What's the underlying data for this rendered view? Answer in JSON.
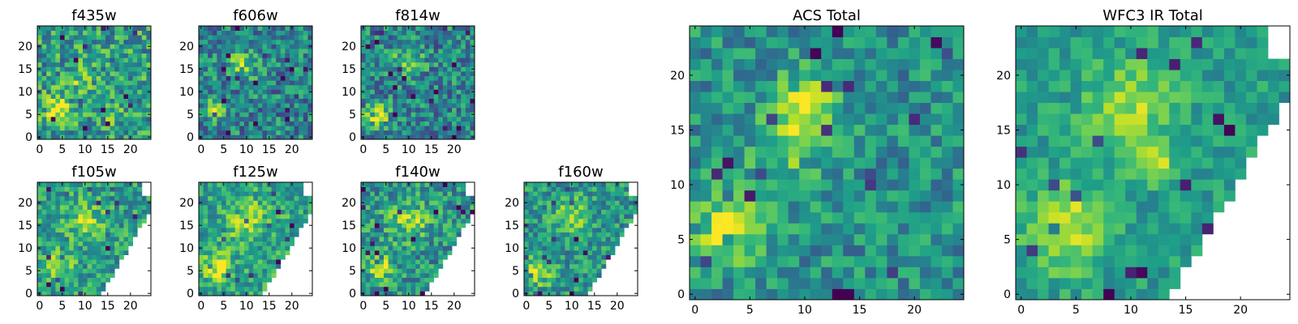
{
  "chart_data": [
    {
      "type": "heatmap",
      "title": "f435w",
      "xlim": [
        -0.5,
        24.5
      ],
      "ylim": [
        -0.5,
        24.5
      ],
      "xticks": [
        0,
        5,
        10,
        15,
        20
      ],
      "yticks": [
        0,
        5,
        10,
        15,
        20
      ],
      "grid": false,
      "colormap": "viridis",
      "blobs": [
        {
          "x": 4,
          "y": 6,
          "amp": 0.35,
          "r": 2
        },
        {
          "x": 9,
          "y": 13,
          "amp": 0.2,
          "r": 2
        },
        {
          "x": 17,
          "y": 6,
          "amp": 0.15,
          "r": 2
        }
      ],
      "mask": "none",
      "noise": 0.28,
      "base": 0.55,
      "seed": 11
    },
    {
      "type": "heatmap",
      "title": "f606w",
      "xlim": [
        -0.5,
        24.5
      ],
      "ylim": [
        -0.5,
        24.5
      ],
      "xticks": [
        0,
        5,
        10,
        15,
        20
      ],
      "yticks": [
        0,
        5,
        10,
        15,
        20
      ],
      "grid": false,
      "colormap": "viridis",
      "blobs": [
        {
          "x": 3,
          "y": 6,
          "amp": 0.45,
          "r": 1.6
        },
        {
          "x": 9,
          "y": 16,
          "amp": 0.35,
          "r": 2.2
        }
      ],
      "mask": "none",
      "noise": 0.26,
      "base": 0.45,
      "seed": 23
    },
    {
      "type": "heatmap",
      "title": "f814w",
      "xlim": [
        -0.5,
        24.5
      ],
      "ylim": [
        -0.5,
        24.5
      ],
      "xticks": [
        0,
        5,
        10,
        15,
        20
      ],
      "yticks": [
        0,
        5,
        10,
        15,
        20
      ],
      "grid": false,
      "colormap": "viridis",
      "blobs": [
        {
          "x": 3,
          "y": 5,
          "amp": 0.5,
          "r": 1.8
        },
        {
          "x": 10,
          "y": 17,
          "amp": 0.35,
          "r": 2.2
        }
      ],
      "mask": "none",
      "noise": 0.26,
      "base": 0.45,
      "seed": 37
    },
    {
      "type": "heatmap",
      "title": "f105w",
      "xlim": [
        -0.5,
        24.5
      ],
      "ylim": [
        -0.5,
        24.5
      ],
      "xticks": [
        0,
        5,
        10,
        15,
        20
      ],
      "yticks": [
        0,
        5,
        10,
        15,
        20
      ],
      "grid": false,
      "colormap": "viridis",
      "blobs": [
        {
          "x": 4,
          "y": 6,
          "amp": 0.35,
          "r": 2.2
        },
        {
          "x": 10,
          "y": 16,
          "amp": 0.25,
          "r": 3
        }
      ],
      "mask": "diagonal",
      "noise": 0.22,
      "base": 0.55,
      "seed": 41
    },
    {
      "type": "heatmap",
      "title": "f125w",
      "xlim": [
        -0.5,
        24.5
      ],
      "ylim": [
        -0.5,
        24.5
      ],
      "xticks": [
        0,
        5,
        10,
        15,
        20
      ],
      "yticks": [
        0,
        5,
        10,
        15,
        20
      ],
      "grid": false,
      "colormap": "viridis",
      "blobs": [
        {
          "x": 4,
          "y": 6,
          "amp": 0.4,
          "r": 2.2
        },
        {
          "x": 10,
          "y": 16,
          "amp": 0.3,
          "r": 3
        }
      ],
      "mask": "diagonal",
      "noise": 0.22,
      "base": 0.58,
      "seed": 53
    },
    {
      "type": "heatmap",
      "title": "f140w",
      "xlim": [
        -0.5,
        24.5
      ],
      "ylim": [
        -0.5,
        24.5
      ],
      "xticks": [
        0,
        5,
        10,
        15,
        20
      ],
      "yticks": [
        0,
        5,
        10,
        15,
        20
      ],
      "grid": false,
      "colormap": "viridis",
      "blobs": [
        {
          "x": 4,
          "y": 6,
          "amp": 0.4,
          "r": 2
        },
        {
          "x": 10,
          "y": 16,
          "amp": 0.3,
          "r": 3
        }
      ],
      "mask": "diagonal",
      "noise": 0.24,
      "base": 0.52,
      "seed": 67
    },
    {
      "type": "heatmap",
      "title": "f160w",
      "xlim": [
        -0.5,
        24.5
      ],
      "ylim": [
        -0.5,
        24.5
      ],
      "xticks": [
        0,
        5,
        10,
        15,
        20
      ],
      "yticks": [
        0,
        5,
        10,
        15,
        20
      ],
      "grid": false,
      "colormap": "viridis",
      "blobs": [
        {
          "x": 3,
          "y": 5,
          "amp": 0.45,
          "r": 2
        },
        {
          "x": 10,
          "y": 17,
          "amp": 0.35,
          "r": 2.6
        }
      ],
      "mask": "diagonal",
      "noise": 0.22,
      "base": 0.52,
      "seed": 79
    },
    {
      "type": "heatmap",
      "title": "ACS Total",
      "xlim": [
        -0.5,
        24.5
      ],
      "ylim": [
        -0.5,
        24.5
      ],
      "xticks": [
        0,
        5,
        10,
        15,
        20
      ],
      "yticks": [
        0,
        5,
        10,
        15,
        20
      ],
      "grid": false,
      "colormap": "viridis",
      "blobs": [
        {
          "x": 3,
          "y": 6,
          "amp": 0.45,
          "r": 2
        },
        {
          "x": 10,
          "y": 17,
          "amp": 0.4,
          "r": 2
        },
        {
          "x": 8,
          "y": 12,
          "amp": 0.2,
          "r": 2.5
        }
      ],
      "mask": "none",
      "noise": 0.2,
      "base": 0.5,
      "seed": 97
    },
    {
      "type": "heatmap",
      "title": "WFC3 IR Total",
      "xlim": [
        -0.5,
        24.5
      ],
      "ylim": [
        -0.5,
        24.5
      ],
      "xticks": [
        0,
        5,
        10,
        15,
        20
      ],
      "yticks": [
        0,
        5,
        10,
        15,
        20
      ],
      "grid": false,
      "colormap": "viridis",
      "blobs": [
        {
          "x": 4,
          "y": 6,
          "amp": 0.4,
          "r": 2.6
        },
        {
          "x": 10,
          "y": 17,
          "amp": 0.3,
          "r": 3
        },
        {
          "x": 12,
          "y": 12,
          "amp": 0.35,
          "r": 1.2
        }
      ],
      "mask": "diagonal",
      "noise": 0.14,
      "base": 0.55,
      "seed": 113
    }
  ]
}
